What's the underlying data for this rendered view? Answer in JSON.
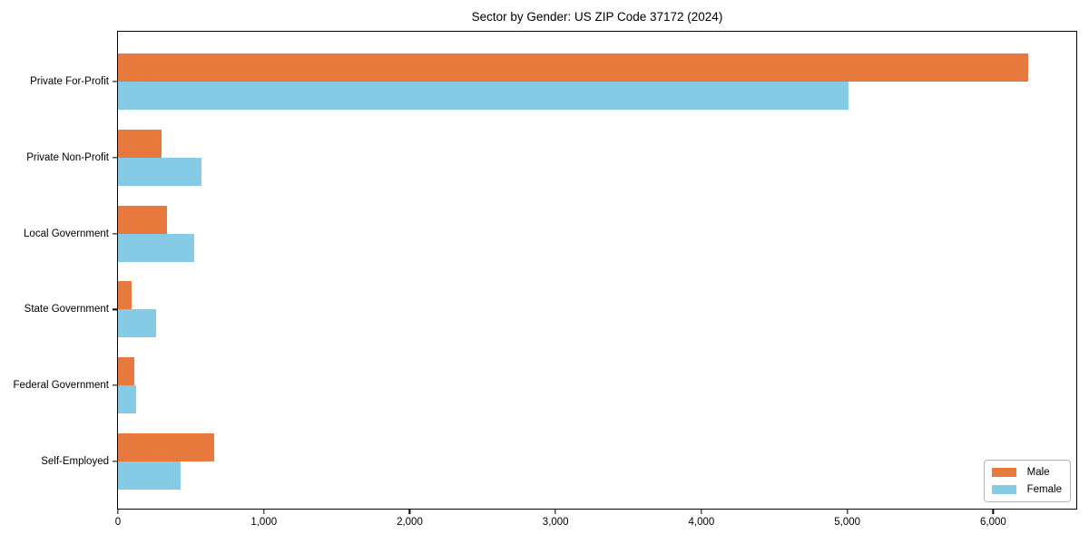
{
  "title": "Sector by Gender: US ZIP Code 37172 (2024)",
  "colors": {
    "male": "#e8793d",
    "female": "#85cbe6",
    "spine": "#000000",
    "text": "#000000",
    "legend_border": "#b3b3b3",
    "background": "#ffffff"
  },
  "legend": {
    "position": "lower right",
    "items": [
      "Male",
      "Female"
    ]
  },
  "chart_data": {
    "type": "bar",
    "orientation": "horizontal",
    "title": "Sector by Gender: US ZIP Code 37172 (2024)",
    "xlabel": "",
    "ylabel": "",
    "categories": [
      "Private For-Profit",
      "Private Non-Profit",
      "Local Government",
      "State Government",
      "Federal Government",
      "Self-Employed"
    ],
    "series": [
      {
        "name": "Male",
        "color": "#e8793d",
        "values": [
          6240,
          300,
          335,
          95,
          110,
          660
        ]
      },
      {
        "name": "Female",
        "color": "#85cbe6",
        "values": [
          5010,
          570,
          520,
          260,
          125,
          430
        ]
      }
    ],
    "xlim": [
      0,
      6570
    ],
    "xticks": [
      0,
      1000,
      2000,
      3000,
      4000,
      5000,
      6000
    ],
    "xtick_labels": [
      "0",
      "1,000",
      "2,000",
      "3,000",
      "4,000",
      "5,000",
      "6,000"
    ],
    "grid": false,
    "legend_position": "lower right"
  }
}
